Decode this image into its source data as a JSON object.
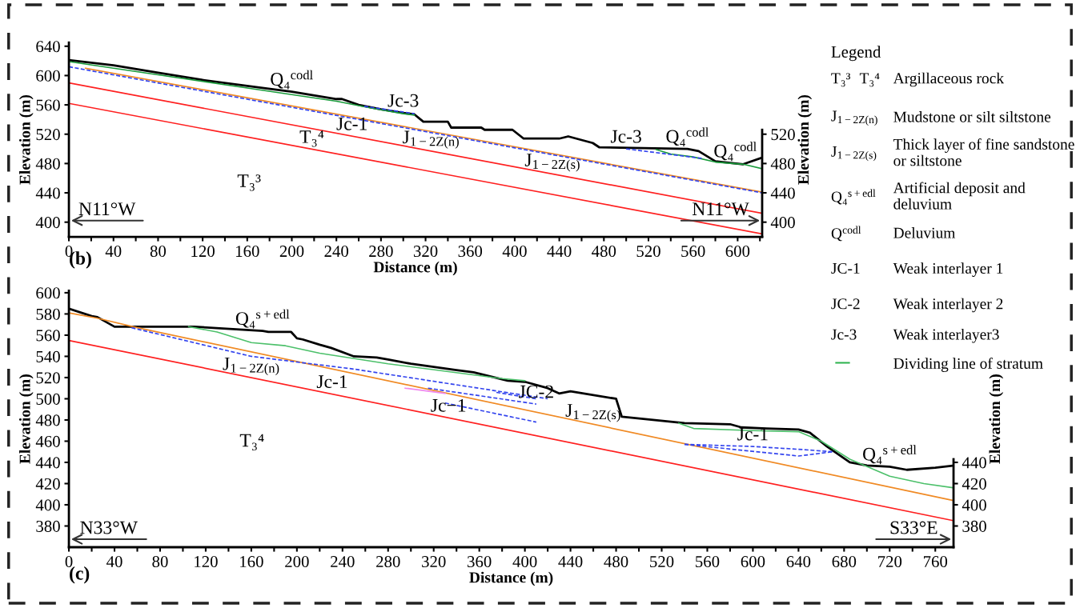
{
  "chart_data": [
    {
      "type": "line",
      "xlabel": "Distance (m)",
      "ylabel": "Elevation (m)",
      "y2label": "Elevation (m)",
      "xlim": [
        0,
        622
      ],
      "ylim": [
        380,
        645
      ],
      "y2lim": [
        380,
        645
      ],
      "xticks": [
        0,
        {
          "value": 20,
          "label": null
        },
        40,
        {
          "value": 60,
          "label": null
        },
        80,
        {
          "value": 100,
          "label": null
        },
        120,
        {
          "value": 140,
          "label": null
        },
        160,
        {
          "value": 180,
          "label": null
        },
        200,
        {
          "value": 220,
          "label": null
        },
        240,
        {
          "value": 260,
          "label": null
        },
        280,
        {
          "value": 300,
          "label": null
        },
        320,
        {
          "value": 340,
          "label": null
        },
        360,
        {
          "value": 380,
          "label": null
        },
        400,
        {
          "value": 420,
          "label": null
        },
        440,
        {
          "value": 460,
          "label": null
        },
        480,
        {
          "value": 500,
          "label": null
        },
        520,
        {
          "value": 540,
          "label": null
        },
        560,
        {
          "value": 580,
          "label": null
        },
        600,
        {
          "value": 620,
          "label": null
        }
      ],
      "yticks": [
        400,
        440,
        480,
        520,
        560,
        600,
        640
      ],
      "y2ticks": [
        400,
        440,
        480,
        520
      ],
      "grid": false,
      "legend": false,
      "marker": "none",
      "series": [
        {
          "color": "#000000",
          "line_style": "solid",
          "x": [
            0,
            40,
            80,
            120,
            160,
            175,
            200,
            240,
            245,
            260,
            280,
            300,
            310,
            318,
            340,
            343,
            370,
            373,
            398,
            408,
            440,
            448,
            470,
            476,
            555,
            565,
            580,
            605,
            622
          ],
          "values": [
            621,
            614,
            604,
            594,
            586,
            583,
            578,
            568,
            568,
            560,
            554,
            549,
            547,
            537,
            537,
            529,
            529,
            526,
            526,
            514,
            514,
            517,
            508,
            502,
            500,
            497,
            483,
            479,
            488
          ]
        },
        {
          "color": "#1a9c3c",
          "line_style": "solid",
          "x": [
            0,
            80,
            160,
            240,
            270,
            300,
            310,
            400,
            527,
            540,
            560,
            580,
            605,
            622
          ],
          "values": [
            619,
            601,
            583,
            565,
            556,
            548,
            546,
            null,
            499,
            493,
            489,
            482,
            479,
            473
          ]
        },
        {
          "color": "#f08a24",
          "line_style": "solid",
          "x": [
            15,
            622
          ],
          "values": [
            610,
            441
          ]
        },
        {
          "color": "#3344ee",
          "line_style": "dashed",
          "x": [
            0,
            622
          ],
          "values": [
            612,
            440
          ]
        },
        {
          "color": "#3344ee",
          "line_style": "dashed",
          "x": [
            265,
            310
          ],
          "values": [
            558,
            548
          ]
        },
        {
          "color": "#3344ee",
          "line_style": "dashed",
          "x": [
            500,
            568
          ],
          "values": [
            500,
            487
          ]
        },
        {
          "color": "#ff2020",
          "line_style": "solid",
          "x": [
            0,
            622
          ],
          "values": [
            590,
            412
          ]
        },
        {
          "color": "#ff2020",
          "line_style": "solid",
          "x": [
            0,
            622
          ],
          "values": [
            562,
            384
          ]
        }
      ],
      "annotations": [
        {
          "text": "Q₄$^{codl}$",
          "x": 200,
          "y": 578
        },
        {
          "text": "Jc-3",
          "x": 300,
          "y": 549
        },
        {
          "text": "Jc-1",
          "x": 254,
          "y": 517.3
        },
        {
          "text": "T₃⁴",
          "x": 218,
          "y": 499.6
        },
        {
          "text": "J$_{1−2Z(n)}$",
          "x": 325,
          "y": 497
        },
        {
          "text": "J$_{1−2Z(s)}$",
          "x": 434,
          "y": 465.8
        },
        {
          "text": "Jc-3",
          "x": 500,
          "y": 500
        },
        {
          "text": "Q₄$^{codl}$",
          "x": 555,
          "y": 500
        },
        {
          "text": "Q₄$^{codl}$",
          "x": 598,
          "y": 480.1
        },
        "T₃³",
        "N11°W",
        "N11°W",
        "(b)"
      ]
    },
    {
      "type": "line",
      "xlabel": "Distance (m)",
      "ylabel": "Elevation (m)",
      "y2label": "Elevation (m)",
      "xlim": [
        0,
        776
      ],
      "ylim": [
        360,
        602
      ],
      "y2lim": [
        360,
        602
      ],
      "xticks": [
        0,
        {
          "value": 20,
          "label": null
        },
        40,
        {
          "value": 60,
          "label": null
        },
        80,
        {
          "value": 100,
          "label": null
        },
        120,
        {
          "value": 140,
          "label": null
        },
        160,
        {
          "value": 180,
          "label": null
        },
        200,
        {
          "value": 220,
          "label": null
        },
        240,
        {
          "value": 260,
          "label": null
        },
        280,
        {
          "value": 300,
          "label": null
        },
        320,
        {
          "value": 340,
          "label": null
        },
        360,
        {
          "value": 380,
          "label": null
        },
        400,
        {
          "value": 420,
          "label": null
        },
        440,
        {
          "value": 460,
          "label": null
        },
        480,
        {
          "value": 500,
          "label": null
        },
        520,
        {
          "value": 540,
          "label": null
        },
        560,
        {
          "value": 580,
          "label": null
        },
        600,
        {
          "value": 620,
          "label": null
        },
        640,
        {
          "value": 660,
          "label": null
        },
        680,
        {
          "value": 700,
          "label": null
        },
        720,
        {
          "value": 740,
          "label": null
        },
        760
      ],
      "yticks": [
        380,
        400,
        420,
        440,
        460,
        480,
        500,
        520,
        540,
        560,
        580,
        600
      ],
      "y2ticks": [
        380,
        400,
        420,
        440
      ],
      "grid": false,
      "legend": false,
      "marker": "none",
      "series": [
        {
          "color": "#000000",
          "line_style": "solid",
          "x": [
            0,
            20,
            25,
            40,
            110,
            170,
            175,
            195,
            200,
            205,
            220,
            230,
            250,
            270,
            280,
            300,
            340,
            355,
            385,
            400,
            420,
            430,
            440,
            480,
            485,
            540,
            580,
            590,
            612,
            640,
            650,
            665,
            685,
            700,
            720,
            735,
            760,
            776
          ],
          "values": [
            585,
            578,
            577,
            568,
            568,
            564,
            563,
            563,
            557,
            556,
            551,
            548,
            540,
            539,
            537,
            533,
            527,
            525,
            517,
            516,
            510,
            505,
            507,
            500,
            483,
            477,
            476,
            473,
            472,
            471,
            468,
            455,
            440,
            437,
            436,
            433,
            435,
            437
          ]
        },
        {
          "color": "#4cc06a",
          "line_style": "solid",
          "x": [
            105,
            130,
            160,
            190,
            220,
            280,
            380,
            400,
            470,
            535,
            548,
            600,
            640,
            660,
            685,
            720,
            750,
            776
          ],
          "values": [
            568,
            563,
            553,
            550,
            543,
            533,
            519,
            517,
            null,
            477,
            472,
            470,
            469,
            460,
            443,
            427,
            420,
            416
          ]
        },
        {
          "color": "#f08a24",
          "line_style": "solid",
          "x": [
            0,
            25,
            60,
            776
          ],
          "values": [
            581,
            576,
            567,
            404
          ]
        },
        {
          "color": "#ff2020",
          "line_style": "solid",
          "x": [
            0,
            776
          ],
          "values": [
            555,
            385
          ]
        },
        {
          "color": "#3344ee",
          "line_style": "dashed",
          "x": [
            55,
            160,
            250,
            420
          ],
          "values": [
            567,
            540,
            528,
            500
          ]
        },
        {
          "color": "#3344ee",
          "line_style": "dashed",
          "x": [
            315,
            410
          ],
          "values": [
            510,
            495
          ]
        },
        {
          "color": "#3344ee",
          "line_style": "dashed",
          "x": [
            375,
            410
          ],
          "values": [
            506,
            500
          ]
        },
        {
          "color": "#3344ee",
          "line_style": "dashed",
          "x": [
            330,
            410
          ],
          "values": [
            496,
            478
          ]
        },
        {
          "color": "#3344ee",
          "line_style": "dashed",
          "x": [
            540,
            600,
            645,
            670
          ],
          "values": [
            457,
            455,
            452,
            450
          ]
        },
        {
          "color": "#3344ee",
          "line_style": "dashed",
          "x": [
            540,
            640,
            670
          ],
          "values": [
            457,
            446,
            450
          ]
        },
        {
          "color": "#ee88ee",
          "line_style": "solid",
          "x": [
            295,
            330
          ],
          "values": [
            510,
            505
          ]
        }
      ],
      "annotations": [
        {
          "text": "Q₄$^{s+edl}$",
          "x": 170,
          "y": 564
        },
        {
          "text": "J$_{1−2Z(n)}$",
          "x": 160,
          "y": 519.9
        },
        {
          "text": "Jc-1",
          "x": 231,
          "y": 504.4
        },
        {
          "text": "Jc−1",
          "x": 333,
          "y": 482
        },
        {
          "text": "JC-2",
          "x": 410,
          "y": 495
        },
        {
          "text": "J$_{1−2Z(s)}$",
          "x": 460,
          "y": 475.9
        },
        {
          "text": "Jc-1",
          "x": 600,
          "y": 455
        },
        {
          "text": "Q₄$^{s+edl}$",
          "x": 720,
          "y": 436
        },
        "T₃⁴",
        "N33°W",
        "S33°E",
        "(c)"
      ]
    },
    {
      "type": "other",
      "title": "Legend",
      "annotations": [
        "T₃³",
        "T₃⁴",
        "Argillaceous rock",
        "J$_{1−2Z(n)}$",
        "Mudstone or silt siltstone",
        "J$_{1−2Z(s)}$",
        "Thick layer of fine sandstone or siltstone",
        "Q₄$^{s+edl}$",
        "Artificial deposit and deluvium",
        "Q$^{codl}$",
        "Deluvium",
        "JC-1",
        "Weak interlayer 1",
        "JC-2",
        "Weak interlayer 2",
        "Jc-3",
        "Weak interlayer3",
        "Dividing line of stratum"
      ]
    }
  ]
}
